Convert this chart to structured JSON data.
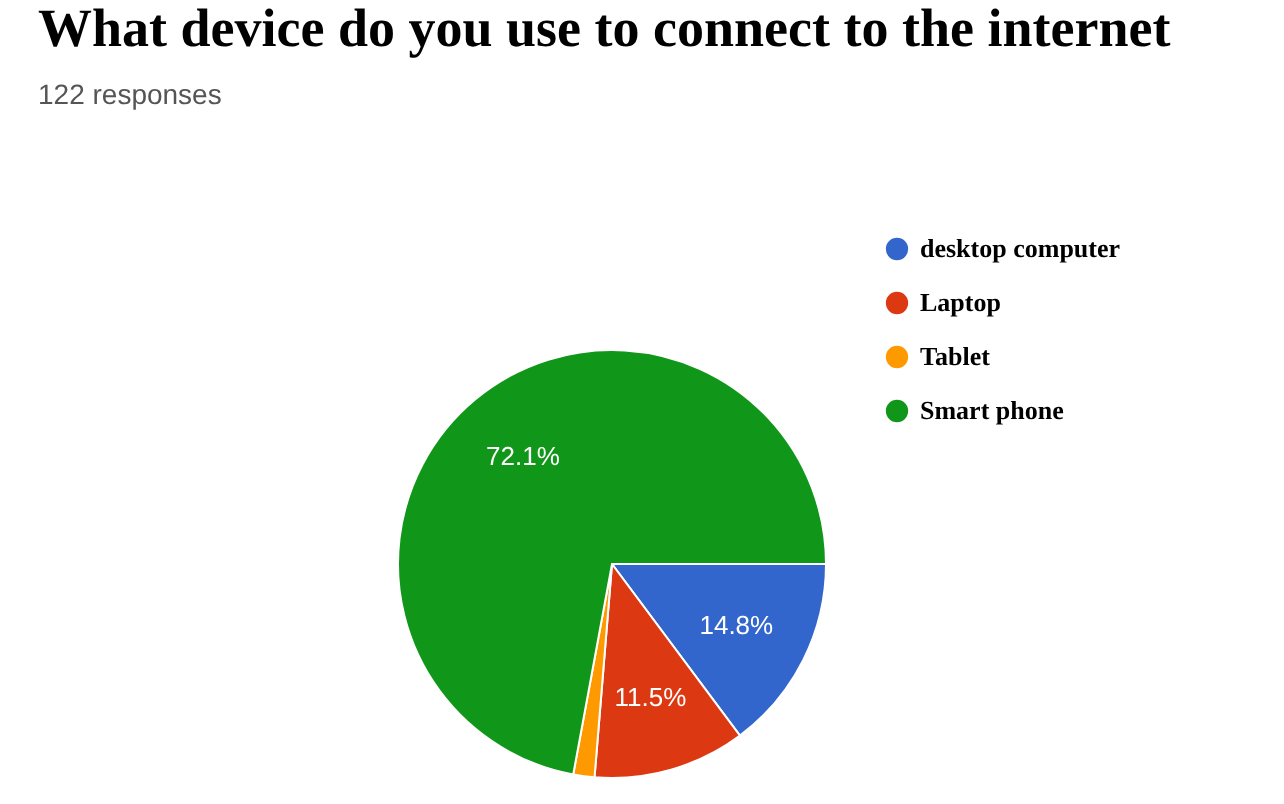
{
  "chart_data": {
    "type": "pie",
    "title": "What device do you use to connect to the internet",
    "subtitle": "122 responses",
    "categories": [
      "desktop computer",
      "Laptop",
      "Tablet",
      "Smart phone"
    ],
    "values": [
      14.8,
      11.5,
      1.6,
      72.1
    ],
    "colors": [
      "#3366cc",
      "#dc3912",
      "#ff9900",
      "#109618"
    ],
    "value_labels": [
      "14.8%",
      "11.5%",
      null,
      "72.1%"
    ],
    "legend": "top right"
  }
}
